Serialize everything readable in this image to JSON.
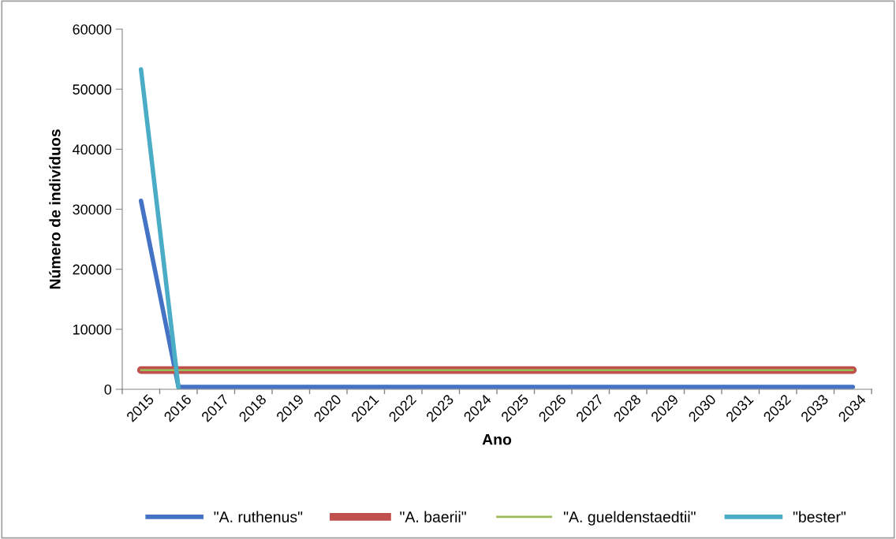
{
  "chart_data": {
    "type": "line",
    "xlabel": "Ano",
    "ylabel": "Número de indivíduos",
    "categories": [
      "2015",
      "2016",
      "2017",
      "2018",
      "2019",
      "2020",
      "2021",
      "2022",
      "2023",
      "2024",
      "2025",
      "2026",
      "2027",
      "2028",
      "2029",
      "2030",
      "2031",
      "2032",
      "2033",
      "2034"
    ],
    "ylim": [
      0,
      60000
    ],
    "yticks": [
      0,
      10000,
      20000,
      30000,
      40000,
      50000,
      60000
    ],
    "grid": false,
    "legend": "bottom",
    "marker": "none",
    "line_style": "solid",
    "series": [
      {
        "name": "\"A. ruthenus\"",
        "color": "#4472c4",
        "values": [
          31400,
          400,
          400,
          400,
          400,
          400,
          400,
          400,
          400,
          400,
          400,
          400,
          400,
          400,
          400,
          400,
          400,
          400,
          400,
          400
        ]
      },
      {
        "name": "\"A. baerii\"",
        "color": "#c0504d",
        "values": [
          3200,
          3200,
          3200,
          3200,
          3200,
          3200,
          3200,
          3200,
          3200,
          3200,
          3200,
          3200,
          3200,
          3200,
          3200,
          3200,
          3200,
          3200,
          3200,
          3200
        ]
      },
      {
        "name": "\"A. gueldenstaedtii\"",
        "color": "#9bbb59",
        "values": [
          3200,
          3200,
          3200,
          3200,
          3200,
          3200,
          3200,
          3200,
          3200,
          3200,
          3200,
          3200,
          3200,
          3200,
          3200,
          3200,
          3200,
          3200,
          3200,
          3200
        ]
      },
      {
        "name": "\"bester\"",
        "color": "#4bacc6",
        "values": [
          53300,
          300,
          null,
          null,
          null,
          null,
          null,
          null,
          null,
          null,
          null,
          null,
          null,
          null,
          null,
          null,
          null,
          null,
          null,
          null
        ]
      }
    ]
  }
}
